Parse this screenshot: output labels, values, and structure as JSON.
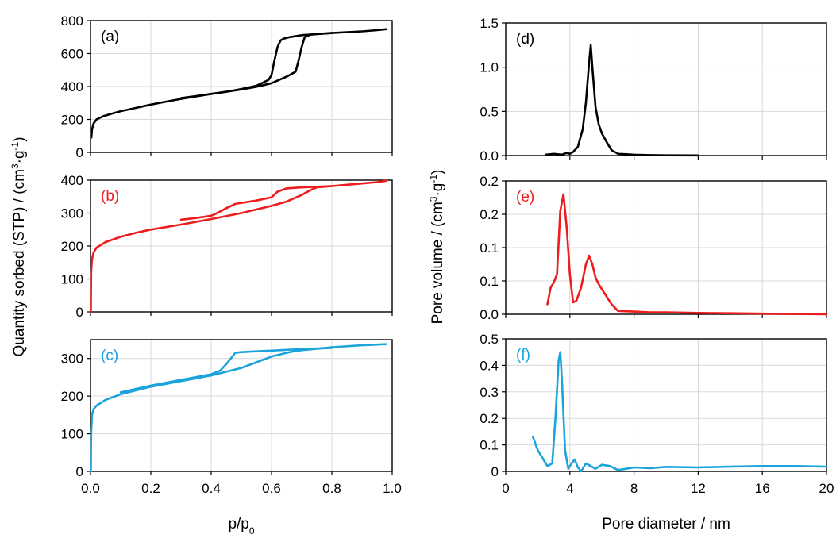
{
  "figure": {
    "left_ylabel_html": "Quantity sorbed (STP) / (cm<tspan baseline-shift=\"super\" font-size=\"12\">3</tspan>·g<tspan baseline-shift=\"super\" font-size=\"12\">-1</tspan>)",
    "right_ylabel_html": "Pore volume / (cm<tspan baseline-shift=\"super\" font-size=\"12\">3</tspan>·g<tspan baseline-shift=\"super\" font-size=\"12\">-1</tspan>)",
    "left_xlabel_html": "p/p<tspan baseline-shift=\"sub\" font-size=\"12\">0</tspan>",
    "right_xlabel": "Pore diameter / nm"
  },
  "chart_data": [
    {
      "id": "a",
      "type": "line",
      "label": "(a)",
      "color": "#000000",
      "xlim": [
        0,
        1
      ],
      "ylim": [
        0,
        800
      ],
      "yticks": [
        0,
        200,
        400,
        600,
        800
      ],
      "xticks": [
        0,
        0.2,
        0.4,
        0.6,
        0.8,
        1.0
      ],
      "xtick_labels": [
        "0.0",
        "0.2",
        "0.4",
        "0.6",
        "0.8",
        "1.0"
      ],
      "grid": true,
      "series": [
        {
          "x": [
            0.003,
            0.005,
            0.01,
            0.02,
            0.04,
            0.07,
            0.1,
            0.15,
            0.2,
            0.25,
            0.3,
            0.35,
            0.4,
            0.45,
            0.5,
            0.55,
            0.6,
            0.65,
            0.68,
            0.69,
            0.7,
            0.71,
            0.73,
            0.76,
            0.8,
            0.85,
            0.9,
            0.95,
            0.98
          ],
          "y": [
            90,
            140,
            175,
            200,
            218,
            235,
            250,
            270,
            290,
            308,
            325,
            340,
            355,
            368,
            382,
            398,
            420,
            460,
            490,
            560,
            640,
            700,
            715,
            720,
            725,
            730,
            735,
            742,
            748
          ]
        },
        {
          "x": [
            0.3,
            0.35,
            0.4,
            0.45,
            0.5,
            0.55,
            0.59,
            0.6,
            0.61,
            0.62,
            0.63,
            0.64,
            0.66,
            0.7,
            0.75,
            0.8
          ],
          "y": [
            330,
            342,
            355,
            368,
            385,
            405,
            440,
            470,
            560,
            640,
            680,
            690,
            700,
            712,
            718,
            725
          ]
        }
      ]
    },
    {
      "id": "b",
      "type": "line",
      "label": "(b)",
      "color": "#ee1c1c",
      "xlim": [
        0,
        1
      ],
      "ylim": [
        0,
        400
      ],
      "yticks": [
        0,
        100,
        200,
        300,
        400
      ],
      "xticks": [
        0,
        0.2,
        0.4,
        0.6,
        0.8,
        1.0
      ],
      "xtick_labels": [
        "0.0",
        "0.2",
        "0.4",
        "0.6",
        "0.8",
        "1.0"
      ],
      "grid": true,
      "series": [
        {
          "x": [
            0.001,
            0.002,
            0.005,
            0.01,
            0.02,
            0.05,
            0.1,
            0.15,
            0.2,
            0.3,
            0.4,
            0.5,
            0.6,
            0.65,
            0.7,
            0.73,
            0.75,
            0.8,
            0.85,
            0.9,
            0.95,
            0.98
          ],
          "y": [
            0,
            120,
            160,
            180,
            195,
            212,
            228,
            240,
            250,
            265,
            282,
            300,
            322,
            335,
            355,
            370,
            378,
            382,
            386,
            390,
            394,
            398
          ]
        },
        {
          "x": [
            0.3,
            0.35,
            0.4,
            0.42,
            0.45,
            0.48,
            0.55,
            0.6,
            0.62,
            0.65,
            0.7,
            0.75,
            0.8
          ],
          "y": [
            280,
            285,
            292,
            300,
            315,
            328,
            338,
            348,
            365,
            375,
            378,
            380,
            382
          ]
        }
      ]
    },
    {
      "id": "c",
      "type": "line",
      "label": "(c)",
      "color": "#1ba3dc",
      "xlim": [
        0,
        1
      ],
      "ylim": [
        0,
        350
      ],
      "yticks": [
        0,
        100,
        200,
        300
      ],
      "xticks": [
        0,
        0.2,
        0.4,
        0.6,
        0.8,
        1.0
      ],
      "xtick_labels": [
        "0.0",
        "0.2",
        "0.4",
        "0.6",
        "0.8",
        "1.0"
      ],
      "grid": true,
      "series": [
        {
          "x": [
            0.001,
            0.002,
            0.005,
            0.01,
            0.02,
            0.05,
            0.1,
            0.2,
            0.3,
            0.4,
            0.5,
            0.55,
            0.6,
            0.65,
            0.68,
            0.7,
            0.75,
            0.8,
            0.9,
            0.98
          ],
          "y": [
            0,
            100,
            150,
            165,
            175,
            190,
            205,
            225,
            240,
            255,
            275,
            290,
            305,
            315,
            320,
            322,
            326,
            330,
            335,
            338
          ]
        },
        {
          "x": [
            0.1,
            0.2,
            0.3,
            0.4,
            0.43,
            0.45,
            0.47,
            0.48,
            0.5,
            0.55,
            0.6,
            0.65,
            0.7,
            0.8
          ],
          "y": [
            210,
            228,
            243,
            258,
            268,
            285,
            305,
            315,
            317,
            319,
            321,
            323,
            325,
            328
          ]
        }
      ]
    },
    {
      "id": "d",
      "type": "line",
      "label": "(d)",
      "color": "#000000",
      "xlim": [
        0,
        20
      ],
      "ylim": [
        0,
        1.5
      ],
      "yticks": [
        0,
        0.5,
        1.0,
        1.5
      ],
      "ytick_labels": [
        "0.0",
        "0.5",
        "1.0",
        "1.5"
      ],
      "xticks": [
        0,
        4,
        8,
        12,
        16,
        20
      ],
      "xtick_labels": [
        "0",
        "4",
        "8",
        "12",
        "16",
        "20"
      ],
      "grid": true,
      "series": [
        {
          "x": [
            2.5,
            3.0,
            3.5,
            3.8,
            4.0,
            4.2,
            4.5,
            4.8,
            5.0,
            5.2,
            5.3,
            5.4,
            5.6,
            5.8,
            6.0,
            6.3,
            6.6,
            7.0,
            7.5,
            8,
            9,
            10,
            12
          ],
          "y": [
            0.01,
            0.02,
            0.01,
            0.03,
            0.02,
            0.04,
            0.1,
            0.3,
            0.6,
            1.05,
            1.25,
            1.0,
            0.55,
            0.35,
            0.25,
            0.15,
            0.06,
            0.02,
            0.015,
            0.01,
            0.005,
            0.003,
            0.002
          ]
        }
      ]
    },
    {
      "id": "e",
      "type": "line",
      "label": "(e)",
      "color": "#ee1c1c",
      "xlim": [
        0,
        20
      ],
      "ylim": [
        0,
        0.2
      ],
      "yticks": [
        0,
        0.05,
        0.1,
        0.15,
        0.2
      ],
      "ytick_labels": [
        "0.0",
        "0.1",
        "0.1",
        "0.2",
        "0.2"
      ],
      "xticks": [
        0,
        4,
        8,
        12,
        16,
        20
      ],
      "xtick_labels": [
        "0",
        "4",
        "8",
        "12",
        "16",
        "20"
      ],
      "grid": true,
      "series": [
        {
          "x": [
            2.6,
            2.8,
            3.0,
            3.2,
            3.4,
            3.6,
            3.8,
            4.0,
            4.2,
            4.4,
            4.7,
            5.0,
            5.2,
            5.4,
            5.6,
            5.8,
            6.2,
            6.6,
            7.0,
            8,
            9,
            10,
            12,
            14,
            16,
            18,
            20
          ],
          "y": [
            0.015,
            0.04,
            0.048,
            0.06,
            0.155,
            0.18,
            0.13,
            0.06,
            0.018,
            0.02,
            0.04,
            0.075,
            0.088,
            0.075,
            0.055,
            0.045,
            0.03,
            0.015,
            0.005,
            0.004,
            0.003,
            0.003,
            0.002,
            0.0015,
            0.001,
            0.0005,
            0.0
          ]
        }
      ]
    },
    {
      "id": "f",
      "type": "line",
      "label": "(f)",
      "color": "#1ba3dc",
      "xlim": [
        0,
        20
      ],
      "ylim": [
        0,
        0.5
      ],
      "yticks": [
        0,
        0.1,
        0.2,
        0.3,
        0.4,
        0.5
      ],
      "ytick_labels": [
        "0",
        "0.1",
        "0.2",
        "0.3",
        "0.4",
        "0.5"
      ],
      "xticks": [
        0,
        4,
        8,
        12,
        16,
        20
      ],
      "xtick_labels": [
        "0",
        "4",
        "8",
        "12",
        "16",
        "20"
      ],
      "grid": true,
      "series": [
        {
          "x": [
            1.7,
            2.0,
            2.3,
            2.6,
            2.9,
            3.1,
            3.3,
            3.4,
            3.5,
            3.7,
            3.9,
            4.1,
            4.3,
            4.5,
            4.7,
            5.0,
            5.3,
            5.6,
            6.0,
            6.5,
            7.0,
            7.5,
            8,
            9,
            10,
            12,
            14,
            16,
            18,
            20
          ],
          "y": [
            0.13,
            0.08,
            0.05,
            0.02,
            0.03,
            0.2,
            0.42,
            0.45,
            0.35,
            0.08,
            0.01,
            0.03,
            0.045,
            0.015,
            0.0,
            0.03,
            0.02,
            0.01,
            0.025,
            0.02,
            0.005,
            0.01,
            0.015,
            0.012,
            0.017,
            0.015,
            0.018,
            0.02,
            0.02,
            0.018
          ]
        }
      ]
    }
  ]
}
